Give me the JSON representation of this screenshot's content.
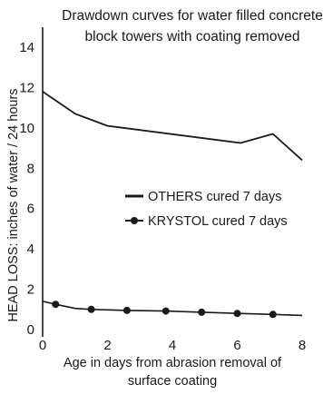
{
  "chart_data": {
    "type": "line",
    "title_lines": [
      "Drawdown curves for water filled concrete",
      "block towers with coating removed"
    ],
    "xlabel_lines": [
      "Age in days from abrasion removal of",
      "surface coating"
    ],
    "ylabel": "HEAD LOSS: inches of water / 24 hours",
    "xlim": [
      0,
      8
    ],
    "ylim": [
      0,
      14
    ],
    "xticks": [
      "0",
      "2",
      "4",
      "6",
      "8"
    ],
    "yticks": [
      "0",
      "2",
      "4",
      "6",
      "8",
      "10",
      "12",
      "14"
    ],
    "grid": false,
    "legend_position": "center-right",
    "series": [
      {
        "name": "OTHERS cured 7 days",
        "marker": "none",
        "color": "#1a1a1a",
        "x": [
          0,
          1.0,
          2.0,
          6.1,
          7.1,
          8.0
        ],
        "y": [
          11.8,
          10.7,
          10.1,
          9.25,
          9.7,
          8.4
        ]
      },
      {
        "name": "KRYSTOL cured 7 days",
        "marker": "circle",
        "color": "#1a1a1a",
        "x": [
          0,
          0.4,
          1.0,
          1.5,
          2.6,
          3.8,
          4.9,
          6.0,
          7.1,
          8.0
        ],
        "y": [
          1.4,
          1.25,
          1.05,
          1.0,
          0.95,
          0.92,
          0.86,
          0.8,
          0.75,
          0.7
        ],
        "marker_x": [
          0.4,
          1.5,
          2.6,
          3.8,
          4.9,
          6.0,
          7.1
        ]
      }
    ]
  }
}
